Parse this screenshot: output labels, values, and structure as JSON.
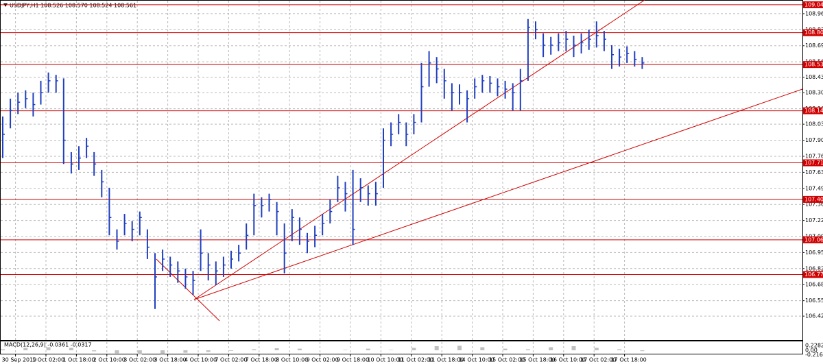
{
  "chart_data": {
    "type": "ohlc",
    "title": "USDJPY,H1 108.526 108.570 108.524 108.561",
    "xlabels": [
      "30 Sep 2019",
      "1 Oct 02:00",
      "1 Oct 18:00",
      "2 Oct 10:00",
      "3 Oct 02:00",
      "3 Oct 18:00",
      "4 Oct 10:00",
      "7 Oct 02:00",
      "7 Oct 18:00",
      "8 Oct 10:00",
      "9 Oct 02:00",
      "9 Oct 18:00",
      "10 Oct 10:00",
      "11 Oct 02:00",
      "11 Oct 18:00",
      "14 Oct 10:00",
      "15 Oct 02:00",
      "15 Oct 18:00",
      "16 Oct 10:00",
      "17 Oct 02:00",
      "17 Oct 18:00"
    ],
    "color": "#1f3fbf",
    "high": [
      108.1,
      108.25,
      108.3,
      108.32,
      108.3,
      108.4,
      108.47,
      108.45,
      108.42,
      107.8,
      107.85,
      107.92,
      107.8,
      107.65,
      107.5,
      107.15,
      107.28,
      107.22,
      107.3,
      107.15,
      106.95,
      106.98,
      106.92,
      106.88,
      106.82,
      106.8,
      107.15,
      106.95,
      106.88,
      106.92,
      106.97,
      107.02,
      107.2,
      107.45,
      107.42,
      107.45,
      107.38,
      107.2,
      107.32,
      107.25,
      107.12,
      107.18,
      107.28,
      107.4,
      107.6,
      107.55,
      107.65,
      107.58,
      107.52,
      107.55,
      108.0,
      108.05,
      108.12,
      108.05,
      108.12,
      108.55,
      108.65,
      108.6,
      108.5,
      108.38,
      108.37,
      108.32,
      108.42,
      108.45,
      108.44,
      108.42,
      108.4,
      108.38,
      108.5,
      108.92,
      108.9,
      108.8,
      108.77,
      108.8,
      108.82,
      108.78,
      108.8,
      108.83,
      108.9,
      108.82,
      108.7,
      108.67,
      108.69,
      108.65,
      108.6
    ],
    "low": [
      107.75,
      108.0,
      108.12,
      108.17,
      108.1,
      108.2,
      108.3,
      108.3,
      107.7,
      107.62,
      107.65,
      107.75,
      107.6,
      107.42,
      107.1,
      106.98,
      107.1,
      107.05,
      107.1,
      106.9,
      106.48,
      106.8,
      106.75,
      106.7,
      106.65,
      106.6,
      106.8,
      106.72,
      106.68,
      106.75,
      106.82,
      106.88,
      106.98,
      107.1,
      107.25,
      107.3,
      107.1,
      106.78,
      107.05,
      107.02,
      106.95,
      107.0,
      107.1,
      107.2,
      107.38,
      107.3,
      107.02,
      107.38,
      107.35,
      107.35,
      107.5,
      107.85,
      107.95,
      107.85,
      107.95,
      108.05,
      108.35,
      108.38,
      108.25,
      108.15,
      108.2,
      108.05,
      108.25,
      108.3,
      108.3,
      108.27,
      108.25,
      108.15,
      108.15,
      108.4,
      108.75,
      108.6,
      108.62,
      108.65,
      108.65,
      108.6,
      108.63,
      108.66,
      108.68,
      108.65,
      108.5,
      108.52,
      108.55,
      108.52,
      108.5
    ],
    "close": [
      107.95,
      108.15,
      108.22,
      108.25,
      108.2,
      108.3,
      108.4,
      108.4,
      107.9,
      107.7,
      107.75,
      107.85,
      107.7,
      107.55,
      107.25,
      107.05,
      107.2,
      107.15,
      107.25,
      107.0,
      106.75,
      106.9,
      106.85,
      106.8,
      106.75,
      106.72,
      106.95,
      106.85,
      106.8,
      106.85,
      106.9,
      106.95,
      107.1,
      107.35,
      107.35,
      107.4,
      107.3,
      106.95,
      107.25,
      107.15,
      107.05,
      107.1,
      107.2,
      107.3,
      107.5,
      107.45,
      107.15,
      107.5,
      107.45,
      107.45,
      107.9,
      107.95,
      108.05,
      107.95,
      108.05,
      108.35,
      108.55,
      108.5,
      108.4,
      108.3,
      108.3,
      108.25,
      108.35,
      108.4,
      108.38,
      108.35,
      108.33,
      108.3,
      108.4,
      108.85,
      108.83,
      108.7,
      108.7,
      108.72,
      108.75,
      108.7,
      108.72,
      108.75,
      108.78,
      108.75,
      108.62,
      108.6,
      108.63,
      108.58,
      108.55
    ],
    "ylim": [
      106.219,
      109.08
    ],
    "yticks": [
      108.965,
      {
        "value": 108.83,
        "label": "108.830"
      },
      108.695,
      {
        "value": 108.56,
        "label": "108.560"
      },
      {
        "value": 108.43,
        "label": "108.430"
      },
      {
        "value": 108.3,
        "label": "108.300"
      },
      108.165,
      108.035,
      {
        "value": 107.9,
        "label": "107.900"
      },
      107.765,
      {
        "value": 107.63,
        "label": "107.630"
      },
      107.495,
      {
        "value": 107.36,
        "label": "107.360"
      },
      107.225,
      {
        "value": 107.09,
        "label": "107.090"
      },
      106.955,
      {
        "value": 106.82,
        "label": "106.820"
      },
      106.685,
      {
        "value": 106.55,
        "label": "106.550"
      },
      {
        "value": 106.42,
        "label": "106.420"
      }
    ],
    "levels": [
      109.04,
      108.805,
      108.537,
      108.148,
      {
        "value": 107.71,
        "label": "107.710"
      },
      107.402,
      107.062,
      {
        "value": 106.77,
        "label": "106.770"
      }
    ],
    "level_color": "#d00000",
    "grid": true,
    "macd": {
      "title": "MACD(12,26,9) -0.0361 -0.0317",
      "values": [
        0.05,
        0.12,
        0.15,
        0.12,
        -0.05,
        -0.15,
        -0.2,
        -0.18,
        -0.12,
        -0.08,
        -0.03,
        0.05,
        0.1,
        0.08,
        0.0,
        0.02,
        0.08,
        0.02,
        0.12,
        0.2,
        0.22,
        0.15,
        0.08,
        0.05,
        0.15,
        0.2,
        0.12,
        0.05,
        -0.04
      ],
      "yticks": [
        0.2282,
        {
          "value": 0,
          "label": "0.00"
        },
        -0.2168
      ]
    }
  }
}
